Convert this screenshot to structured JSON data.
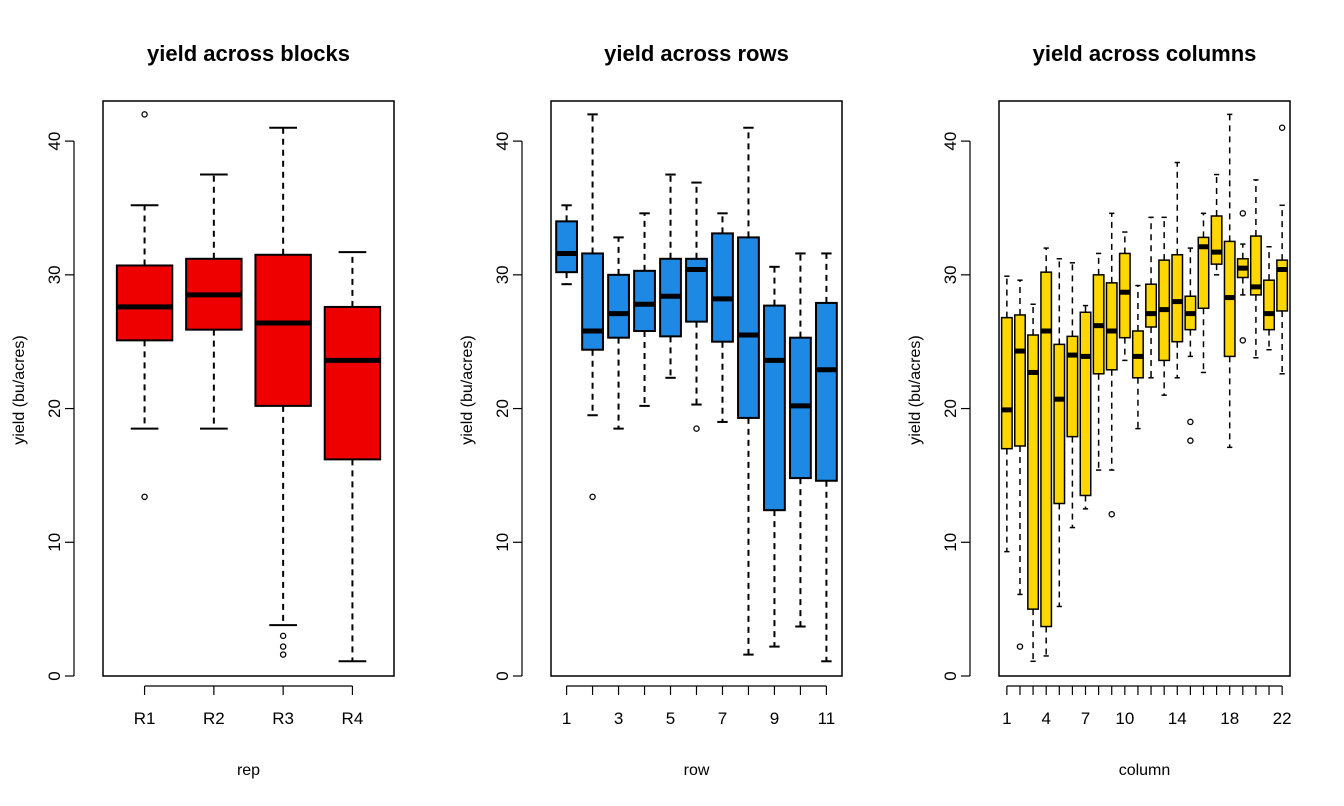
{
  "colors": {
    "blocks": "#EE0000",
    "rows": "#1E88E5",
    "columns": "#FFD700"
  },
  "chart_data": [
    {
      "type": "boxplot",
      "title": "yield across blocks",
      "xlabel": "rep",
      "ylabel": "yield (bu/acres)",
      "ylim": [
        0,
        43
      ],
      "yticks": [
        0,
        10,
        20,
        30,
        40
      ],
      "color": "#EE0000",
      "categories": [
        "R1",
        "R2",
        "R3",
        "R4"
      ],
      "tick_labels": [
        "R1",
        "R2",
        "R3",
        "R4"
      ],
      "boxes": [
        {
          "q1": 25.1,
          "median": 27.6,
          "q3": 30.7,
          "lower": 18.5,
          "upper": 35.2,
          "outliers": [
            42.0,
            13.4
          ]
        },
        {
          "q1": 25.9,
          "median": 28.5,
          "q3": 31.2,
          "lower": 18.5,
          "upper": 37.5,
          "outliers": []
        },
        {
          "q1": 20.2,
          "median": 26.4,
          "q3": 31.5,
          "lower": 3.8,
          "upper": 41.0,
          "outliers": [
            3.0,
            2.2,
            1.6
          ]
        },
        {
          "q1": 16.2,
          "median": 23.6,
          "q3": 27.6,
          "lower": 1.1,
          "upper": 31.7,
          "outliers": []
        }
      ]
    },
    {
      "type": "boxplot",
      "title": "yield across rows",
      "xlabel": "row",
      "ylabel": "yield (bu/acres)",
      "ylim": [
        0,
        43
      ],
      "yticks": [
        0,
        10,
        20,
        30,
        40
      ],
      "color": "#1E88E5",
      "categories": [
        "1",
        "2",
        "3",
        "4",
        "5",
        "6",
        "7",
        "8",
        "9",
        "10",
        "11"
      ],
      "tick_labels": [
        "1",
        "",
        "3",
        "",
        "5",
        "",
        "7",
        "",
        "9",
        "",
        "11"
      ],
      "boxes": [
        {
          "q1": 30.2,
          "median": 31.6,
          "q3": 34.0,
          "lower": 29.3,
          "upper": 35.2,
          "outliers": []
        },
        {
          "q1": 24.4,
          "median": 25.8,
          "q3": 31.6,
          "lower": 19.5,
          "upper": 42.0,
          "outliers": [
            13.4
          ]
        },
        {
          "q1": 25.3,
          "median": 27.1,
          "q3": 30.0,
          "lower": 18.5,
          "upper": 32.8,
          "outliers": []
        },
        {
          "q1": 25.8,
          "median": 27.8,
          "q3": 30.3,
          "lower": 20.2,
          "upper": 34.6,
          "outliers": []
        },
        {
          "q1": 25.4,
          "median": 28.4,
          "q3": 31.2,
          "lower": 22.3,
          "upper": 37.5,
          "outliers": []
        },
        {
          "q1": 26.5,
          "median": 30.4,
          "q3": 31.2,
          "lower": 20.3,
          "upper": 36.9,
          "outliers": [
            18.5
          ]
        },
        {
          "q1": 25.0,
          "median": 28.2,
          "q3": 33.1,
          "lower": 19.0,
          "upper": 34.6,
          "outliers": []
        },
        {
          "q1": 19.3,
          "median": 25.5,
          "q3": 32.8,
          "lower": 1.6,
          "upper": 41.0,
          "outliers": []
        },
        {
          "q1": 12.4,
          "median": 23.6,
          "q3": 27.7,
          "lower": 2.2,
          "upper": 30.6,
          "outliers": []
        },
        {
          "q1": 14.8,
          "median": 20.2,
          "q3": 25.3,
          "lower": 3.7,
          "upper": 31.6,
          "outliers": []
        },
        {
          "q1": 14.6,
          "median": 22.9,
          "q3": 27.9,
          "lower": 1.1,
          "upper": 31.6,
          "outliers": []
        }
      ]
    },
    {
      "type": "boxplot",
      "title": "yield across columns",
      "xlabel": "column",
      "ylabel": "yield (bu/acres)",
      "ylim": [
        0,
        43
      ],
      "yticks": [
        0,
        10,
        20,
        30,
        40
      ],
      "color": "#FFD700",
      "categories": [
        "1",
        "2",
        "3",
        "4",
        "5",
        "6",
        "7",
        "8",
        "9",
        "10",
        "11",
        "12",
        "13",
        "14",
        "15",
        "16",
        "17",
        "18",
        "19",
        "20",
        "21",
        "22"
      ],
      "tick_labels": [
        "1",
        "",
        "",
        "4",
        "",
        "",
        "7",
        "",
        "",
        "10",
        "",
        "",
        "",
        "14",
        "",
        "",
        "",
        "18",
        "",
        "",
        "",
        "22"
      ],
      "boxes": [
        {
          "q1": 17.0,
          "median": 19.9,
          "q3": 26.8,
          "lower": 9.3,
          "upper": 29.9,
          "outliers": []
        },
        {
          "q1": 17.2,
          "median": 24.3,
          "q3": 27.0,
          "lower": 6.1,
          "upper": 29.6,
          "outliers": [
            2.2
          ]
        },
        {
          "q1": 5.0,
          "median": 22.7,
          "q3": 25.5,
          "lower": 1.1,
          "upper": 27.8,
          "outliers": []
        },
        {
          "q1": 3.7,
          "median": 25.8,
          "q3": 30.2,
          "lower": 1.5,
          "upper": 32.0,
          "outliers": []
        },
        {
          "q1": 12.9,
          "median": 20.7,
          "q3": 24.8,
          "lower": 5.2,
          "upper": 31.2,
          "outliers": []
        },
        {
          "q1": 17.9,
          "median": 24.0,
          "q3": 25.4,
          "lower": 11.1,
          "upper": 30.9,
          "outliers": []
        },
        {
          "q1": 13.5,
          "median": 23.9,
          "q3": 27.2,
          "lower": 12.5,
          "upper": 27.7,
          "outliers": []
        },
        {
          "q1": 22.6,
          "median": 26.2,
          "q3": 30.0,
          "lower": 15.4,
          "upper": 31.6,
          "outliers": []
        },
        {
          "q1": 22.9,
          "median": 25.8,
          "q3": 29.4,
          "lower": 15.4,
          "upper": 34.6,
          "outliers": [
            12.1
          ]
        },
        {
          "q1": 25.3,
          "median": 28.7,
          "q3": 31.6,
          "lower": 23.6,
          "upper": 33.2,
          "outliers": []
        },
        {
          "q1": 22.3,
          "median": 23.9,
          "q3": 25.8,
          "lower": 18.5,
          "upper": 29.2,
          "outliers": []
        },
        {
          "q1": 26.1,
          "median": 27.1,
          "q3": 29.3,
          "lower": 22.3,
          "upper": 34.3,
          "outliers": []
        },
        {
          "q1": 23.6,
          "median": 27.4,
          "q3": 31.1,
          "lower": 21.0,
          "upper": 34.3,
          "outliers": []
        },
        {
          "q1": 25.0,
          "median": 28.0,
          "q3": 31.5,
          "lower": 22.3,
          "upper": 38.4,
          "outliers": []
        },
        {
          "q1": 25.9,
          "median": 27.1,
          "q3": 28.4,
          "lower": 23.9,
          "upper": 32.0,
          "outliers": [
            19.0,
            17.6
          ]
        },
        {
          "q1": 27.5,
          "median": 32.1,
          "q3": 32.8,
          "lower": 22.7,
          "upper": 34.6,
          "outliers": []
        },
        {
          "q1": 30.8,
          "median": 31.7,
          "q3": 34.4,
          "lower": 30.0,
          "upper": 37.5,
          "outliers": []
        },
        {
          "q1": 23.9,
          "median": 28.3,
          "q3": 32.5,
          "lower": 17.1,
          "upper": 42.0,
          "outliers": []
        },
        {
          "q1": 29.8,
          "median": 30.5,
          "q3": 31.2,
          "lower": 28.5,
          "upper": 32.3,
          "outliers": [
            34.6,
            25.1
          ]
        },
        {
          "q1": 28.5,
          "median": 29.1,
          "q3": 32.9,
          "lower": 23.8,
          "upper": 37.1,
          "outliers": []
        },
        {
          "q1": 25.9,
          "median": 27.1,
          "q3": 29.6,
          "lower": 24.4,
          "upper": 32.1,
          "outliers": []
        },
        {
          "q1": 27.3,
          "median": 30.4,
          "q3": 31.1,
          "lower": 22.6,
          "upper": 35.2,
          "outliers": [
            41.0
          ]
        }
      ]
    }
  ]
}
